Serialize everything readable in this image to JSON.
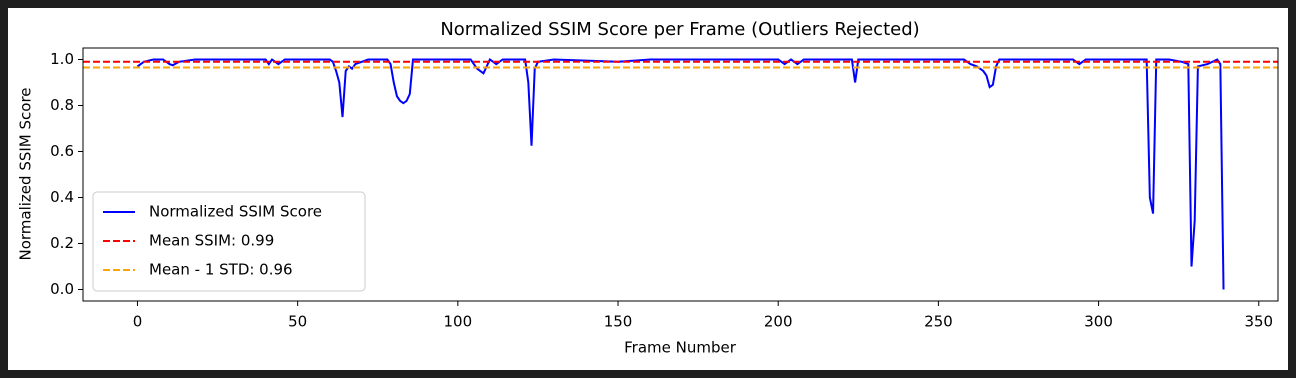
{
  "chart_data": {
    "type": "line",
    "title": "Normalized SSIM Score per Frame (Outliers Rejected)",
    "xlabel": "Frame Number",
    "ylabel": "Normalized SSIM Score",
    "x": [
      0,
      2,
      5,
      8,
      10,
      11,
      13,
      18,
      40,
      41,
      42,
      44,
      46,
      60,
      61,
      62,
      63,
      64,
      65,
      66,
      67,
      68,
      72,
      78,
      79,
      80,
      81,
      82,
      83,
      84,
      85,
      86,
      104,
      106,
      108,
      110,
      112,
      114,
      121,
      122,
      123,
      124,
      125,
      130,
      150,
      160,
      200,
      202,
      204,
      206,
      208,
      223,
      224,
      225,
      258,
      260,
      262,
      264,
      265,
      266,
      267,
      268,
      269,
      292,
      294,
      296,
      315,
      316,
      317,
      318,
      322,
      326,
      328,
      329,
      330,
      331,
      334,
      337,
      338,
      339
    ],
    "series": [
      {
        "name": "Normalized SSIM Score",
        "color": "#0000ff",
        "values": [
          0.97,
          0.99,
          1.0,
          1.0,
          0.98,
          0.975,
          0.99,
          1.0,
          1.0,
          0.98,
          1.0,
          0.98,
          1.0,
          1.0,
          0.99,
          0.95,
          0.9,
          0.75,
          0.95,
          0.97,
          0.96,
          0.98,
          1.0,
          1.0,
          0.98,
          0.9,
          0.84,
          0.82,
          0.81,
          0.82,
          0.85,
          1.0,
          1.0,
          0.96,
          0.94,
          1.0,
          0.98,
          1.0,
          1.0,
          0.9,
          0.625,
          0.96,
          0.99,
          1.0,
          0.99,
          1.0,
          1.0,
          0.98,
          1.0,
          0.98,
          1.0,
          1.0,
          0.9,
          1.0,
          1.0,
          0.98,
          0.97,
          0.95,
          0.93,
          0.88,
          0.89,
          0.97,
          1.0,
          1.0,
          0.98,
          1.0,
          1.0,
          0.4,
          0.33,
          1.0,
          1.0,
          0.99,
          0.98,
          0.1,
          0.3,
          0.97,
          0.98,
          1.0,
          0.98,
          0.0
        ]
      }
    ],
    "hlines": [
      {
        "name": "Mean SSIM: 0.99",
        "color": "#ff0000",
        "value": 0.99
      },
      {
        "name": "Mean - 1 STD: 0.96",
        "color": "#ffa500",
        "value": 0.965
      }
    ],
    "xlim": [
      -17,
      356
    ],
    "ylim": [
      -0.05,
      1.05
    ],
    "xticks": [
      0,
      50,
      100,
      150,
      200,
      250,
      300,
      350
    ],
    "yticks": [
      {
        "value": 0,
        "label": "0.0"
      },
      0.2,
      0.4,
      0.6,
      0.8,
      {
        "value": 1,
        "label": "1.0"
      }
    ],
    "legend": "lower left"
  }
}
